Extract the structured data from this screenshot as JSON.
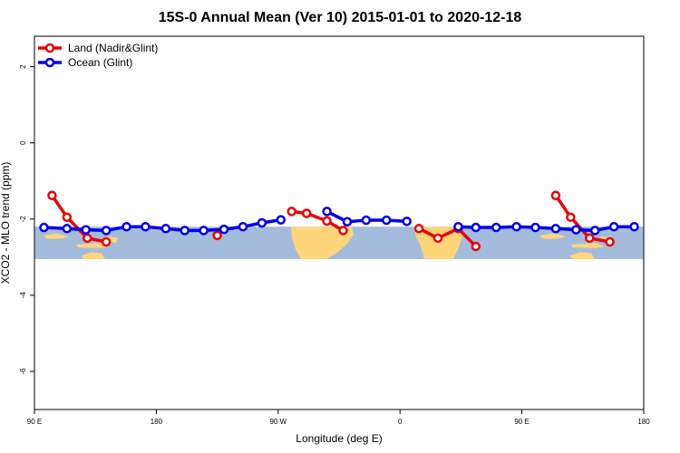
{
  "chart_data": {
    "type": "line",
    "title": "15S-0 Annual Mean (Ver 10)   2015-01-01 to 2020-12-18",
    "xlabel": "Longitude (deg E)",
    "ylabel": "XCO2 - MLO trend (ppm)",
    "xlim": [
      90,
      540
    ],
    "ylim": [
      -7.0,
      2.8
    ],
    "x_ticks": [
      {
        "value": 90,
        "label": "90 E"
      },
      {
        "value": 180,
        "label": "180"
      },
      {
        "value": 270,
        "label": "90 W"
      },
      {
        "value": 360,
        "label": "0"
      },
      {
        "value": 450,
        "label": "90 E"
      },
      {
        "value": 540,
        "label": "180"
      }
    ],
    "y_ticks": [
      {
        "value": 2,
        "label": "2"
      },
      {
        "value": 0,
        "label": "0"
      },
      {
        "value": -2,
        "label": "-2"
      },
      {
        "value": -4,
        "label": "-4"
      },
      {
        "value": -6,
        "label": "-6"
      }
    ],
    "grid": false,
    "legend_position": "top-left",
    "background_map": {
      "lat_band": "15S-0",
      "ocean_color": "#a4bcdc",
      "land_color": "#fdd67a",
      "y_range": [
        -3.05,
        -2.2
      ]
    },
    "series": [
      {
        "name": "Land (Nadir&Glint)",
        "color": "#ee0000",
        "segments": [
          [
            [
              103,
              -1.38
            ],
            [
              114,
              -1.95
            ],
            [
              129,
              -2.5
            ],
            [
              143,
              -2.6
            ]
          ],
          [
            [
              155,
              null
            ]
          ],
          [
            [
              225,
              -2.43
            ]
          ],
          [
            [
              280,
              -1.8
            ],
            [
              291,
              -1.85
            ],
            [
              306,
              -2.05
            ],
            [
              318,
              -2.3
            ]
          ],
          [
            [
              374,
              -2.25
            ],
            [
              388,
              -2.5
            ],
            [
              403,
              -2.25
            ],
            [
              416,
              -2.72
            ]
          ],
          [
            [
              475,
              -1.38
            ],
            [
              486,
              -1.95
            ],
            [
              500,
              -2.5
            ],
            [
              515,
              -2.6
            ]
          ]
        ]
      },
      {
        "name": "Ocean (Glint)",
        "color": "#0000ee",
        "segments": [
          [
            [
              97,
              -2.22
            ],
            [
              114,
              -2.25
            ],
            [
              128,
              -2.28
            ],
            [
              143,
              -2.3
            ],
            [
              158,
              -2.2
            ],
            [
              172,
              -2.2
            ],
            [
              187,
              -2.25
            ],
            [
              201,
              -2.3
            ],
            [
              215,
              -2.3
            ],
            [
              230,
              -2.27
            ],
            [
              244,
              -2.2
            ],
            [
              258,
              -2.1
            ],
            [
              272,
              -2.02
            ]
          ],
          [
            [
              306,
              -1.8
            ],
            [
              321,
              -2.07
            ],
            [
              335,
              -2.03
            ],
            [
              350,
              -2.03
            ],
            [
              365,
              -2.06
            ]
          ],
          [
            [
              403,
              -2.2
            ],
            [
              416,
              -2.22
            ],
            [
              431,
              -2.22
            ],
            [
              446,
              -2.2
            ],
            [
              460,
              -2.22
            ],
            [
              475,
              -2.25
            ],
            [
              490,
              -2.28
            ],
            [
              504,
              -2.3
            ],
            [
              518,
              -2.2
            ],
            [
              533,
              -2.2
            ]
          ]
        ]
      }
    ]
  }
}
